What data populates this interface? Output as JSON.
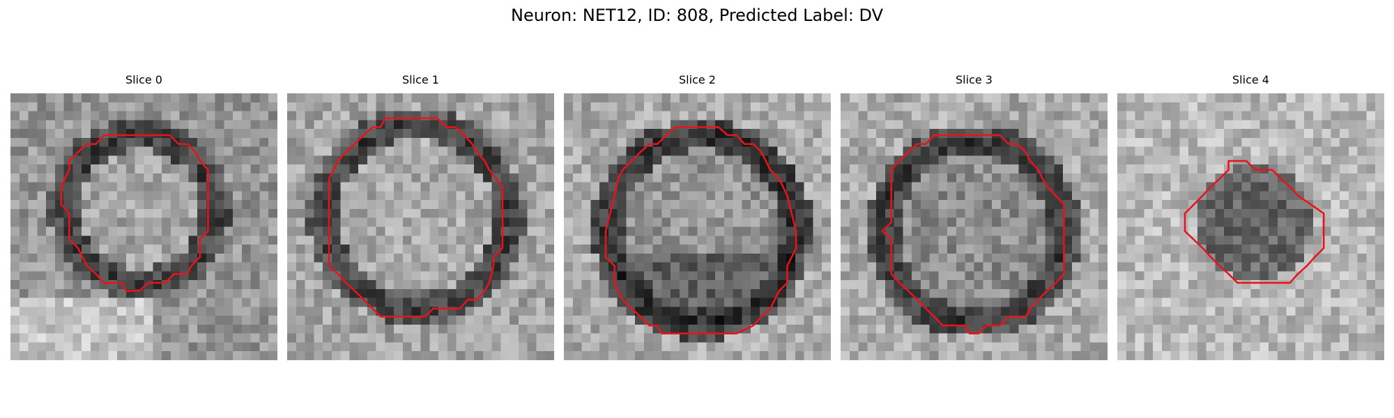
{
  "figure": {
    "title": "Neuron: NET12, ID: 808, Predicted Label: DV"
  },
  "overlay_color": "#e8141c",
  "panels": [
    {
      "label": "Slice 0",
      "ring": "dark ring around lighter interior, bright patches lower-left"
    },
    {
      "label": "Slice 1",
      "ring": "large dark ring, light mottled interior"
    },
    {
      "label": "Slice 2",
      "ring": "dark ring, darker lower interior"
    },
    {
      "label": "Slice 3",
      "ring": "dark ring, mid-gray interior"
    },
    {
      "label": "Slice 4",
      "ring": "small dark blob, light noisy background"
    }
  ]
}
